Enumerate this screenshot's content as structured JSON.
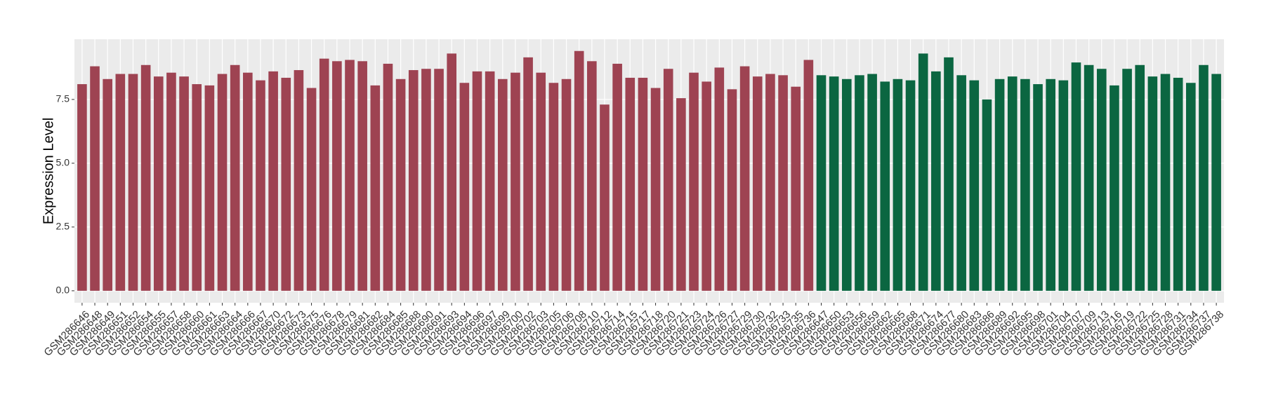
{
  "chart_data": {
    "type": "bar",
    "y_label": "Expression Level",
    "categories": [
      "GSM286646",
      "GSM286648",
      "GSM286649",
      "GSM286651",
      "GSM286652",
      "GSM286654",
      "GSM286655",
      "GSM286657",
      "GSM286658",
      "GSM286660",
      "GSM286661",
      "GSM286663",
      "GSM286664",
      "GSM286666",
      "GSM286667",
      "GSM286670",
      "GSM286672",
      "GSM286673",
      "GSM286675",
      "GSM286676",
      "GSM286678",
      "GSM286679",
      "GSM286681",
      "GSM286682",
      "GSM286684",
      "GSM286685",
      "GSM286688",
      "GSM286690",
      "GSM286691",
      "GSM286693",
      "GSM286694",
      "GSM286696",
      "GSM286697",
      "GSM286699",
      "GSM286700",
      "GSM286702",
      "GSM286703",
      "GSM286705",
      "GSM286706",
      "GSM286708",
      "GSM286710",
      "GSM286712",
      "GSM286714",
      "GSM286715",
      "GSM286717",
      "GSM286718",
      "GSM286720",
      "GSM286721",
      "GSM286723",
      "GSM286724",
      "GSM286726",
      "GSM286727",
      "GSM286729",
      "GSM286730",
      "GSM286732",
      "GSM286733",
      "GSM286735",
      "GSM286736",
      "GSM286647",
      "GSM286650",
      "GSM286653",
      "GSM286656",
      "GSM286659",
      "GSM286662",
      "GSM286665",
      "GSM286668",
      "GSM286671",
      "GSM286674",
      "GSM286677",
      "GSM286680",
      "GSM286683",
      "GSM286686",
      "GSM286689",
      "GSM286692",
      "GSM286695",
      "GSM286698",
      "GSM286701",
      "GSM286704",
      "GSM286707",
      "GSM286709",
      "GSM286713",
      "GSM286716",
      "GSM286719",
      "GSM286722",
      "GSM286725",
      "GSM286728",
      "GSM286731",
      "GSM286734",
      "GSM286737",
      "GSM286738"
    ],
    "series": [
      {
        "color": "#9e4352",
        "values": [
          8.1,
          8.8,
          8.3,
          8.5,
          8.5,
          8.85,
          8.4,
          8.55,
          8.4,
          8.1,
          8.05,
          8.5,
          8.85,
          8.55,
          8.25,
          8.6,
          8.35,
          8.65,
          7.95,
          9.1,
          9.0,
          9.05,
          9.0,
          8.05,
          8.9,
          8.3,
          8.65,
          8.7,
          8.7,
          9.3,
          8.15,
          8.6,
          8.6,
          8.3,
          8.55,
          9.15,
          8.55,
          8.15,
          8.3,
          9.4,
          9.0,
          7.3,
          8.9,
          8.35,
          8.35,
          7.95,
          8.7,
          7.55,
          8.55,
          8.2,
          8.75,
          7.9,
          8.8,
          8.4,
          8.5,
          8.45,
          8.0,
          9.05,
          null,
          null,
          null,
          null,
          null,
          null,
          null,
          null,
          null,
          null,
          null,
          null,
          null,
          null,
          null,
          null,
          null,
          null,
          null,
          null,
          null,
          null,
          null,
          null,
          null,
          null,
          null,
          null,
          null,
          null,
          null,
          null
        ]
      },
      {
        "color": "#0b6641",
        "values": [
          null,
          null,
          null,
          null,
          null,
          null,
          null,
          null,
          null,
          null,
          null,
          null,
          null,
          null,
          null,
          null,
          null,
          null,
          null,
          null,
          null,
          null,
          null,
          null,
          null,
          null,
          null,
          null,
          null,
          null,
          null,
          null,
          null,
          null,
          null,
          null,
          null,
          null,
          null,
          null,
          null,
          null,
          null,
          null,
          null,
          null,
          null,
          null,
          null,
          null,
          null,
          null,
          null,
          null,
          null,
          null,
          null,
          null,
          8.45,
          8.4,
          8.3,
          8.45,
          8.5,
          8.2,
          8.3,
          8.25,
          9.3,
          8.6,
          9.15,
          8.45,
          8.25,
          7.5,
          8.3,
          8.4,
          8.3,
          8.1,
          8.3,
          8.25,
          8.95,
          8.85,
          8.7,
          8.05,
          8.7,
          8.85,
          8.4,
          8.5,
          8.35,
          8.15,
          8.85,
          8.5
        ]
      }
    ],
    "ylim": [
      -0.47,
      9.86
    ],
    "yticks": [
      {
        "value": 0,
        "label": "0.0"
      },
      {
        "value": 2.5,
        "label": "2.5"
      },
      {
        "value": 5,
        "label": "5.0"
      },
      {
        "value": 7.5,
        "label": "7.5"
      }
    ],
    "grid": true
  }
}
